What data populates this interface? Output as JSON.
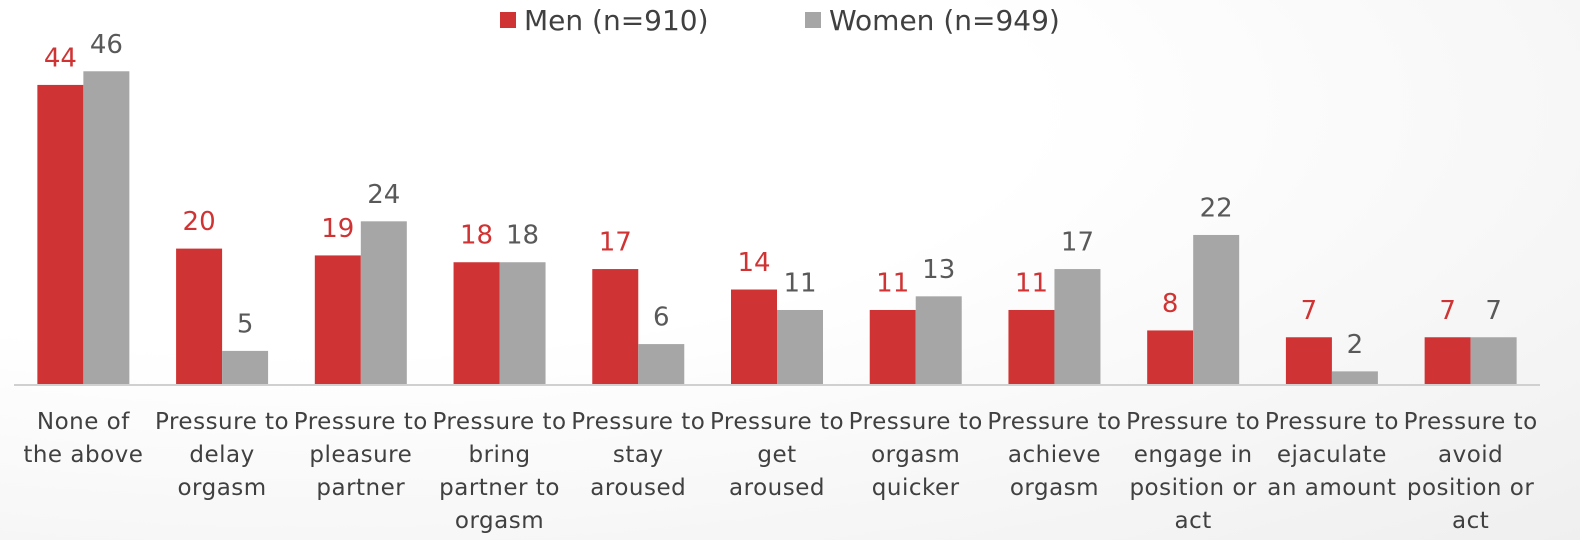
{
  "chart_data": {
    "type": "bar",
    "categories": [
      "None of the above",
      "Pressure to delay orgasm",
      "Pressure to pleasure partner",
      "Pressure to bring partner to orgasm",
      "Pressure to stay aroused",
      "Pressure to get aroused",
      "Pressure to orgasm quicker",
      "Pressure to achieve orgasm",
      "Pressure to engage in position or act",
      "Pressure to ejaculate an amount",
      "Pressure to avoid position or act"
    ],
    "series": [
      {
        "name": "Men (n=910)",
        "color": "#d03333",
        "values": [
          44,
          20,
          19,
          18,
          17,
          14,
          11,
          11,
          8,
          7,
          7
        ]
      },
      {
        "name": "Women (n=949)",
        "color": "#a6a6a6",
        "values": [
          46,
          5,
          24,
          18,
          6,
          11,
          13,
          17,
          22,
          2,
          7
        ]
      }
    ],
    "ylim": [
      0,
      50
    ],
    "legend": "top"
  }
}
